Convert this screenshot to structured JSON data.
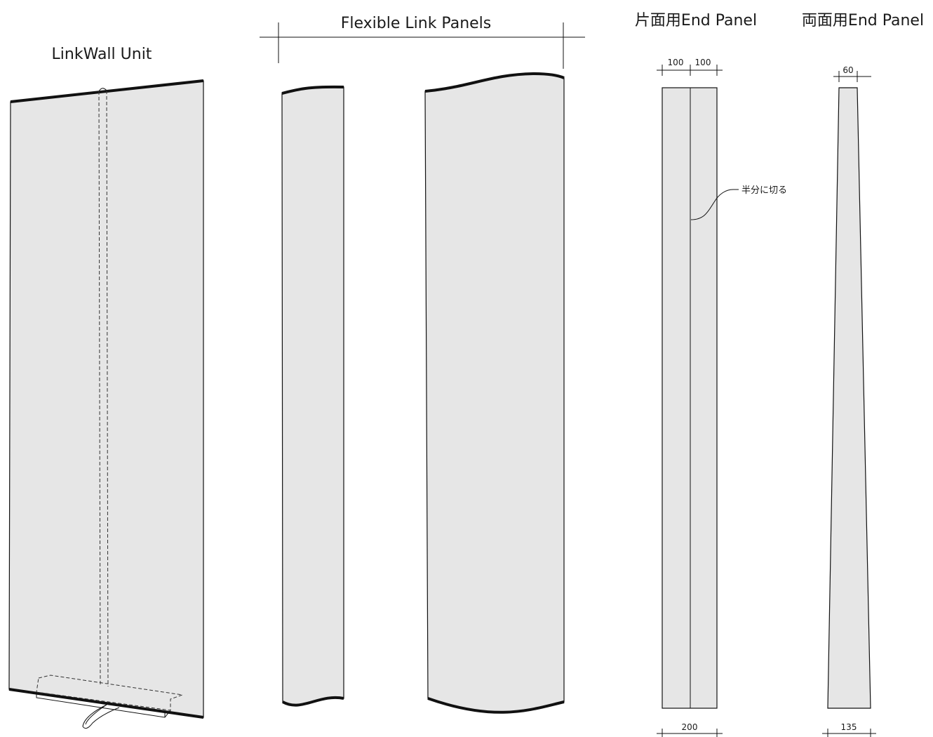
{
  "labels": {
    "linkwall_unit": "LinkWall Unit",
    "flexible_link_panels": "Flexible Link Panels",
    "single_end_panel": "片面用End Panel",
    "double_end_panel": "両面用End Panel",
    "cut_in_half": "半分に切る"
  },
  "dimensions": {
    "single_left_half": "100",
    "single_right_half": "100",
    "single_bottom": "200",
    "double_top": "60",
    "double_bottom": "135"
  },
  "colors": {
    "panel_fill": "#e6e6e6",
    "line": "#111111"
  }
}
